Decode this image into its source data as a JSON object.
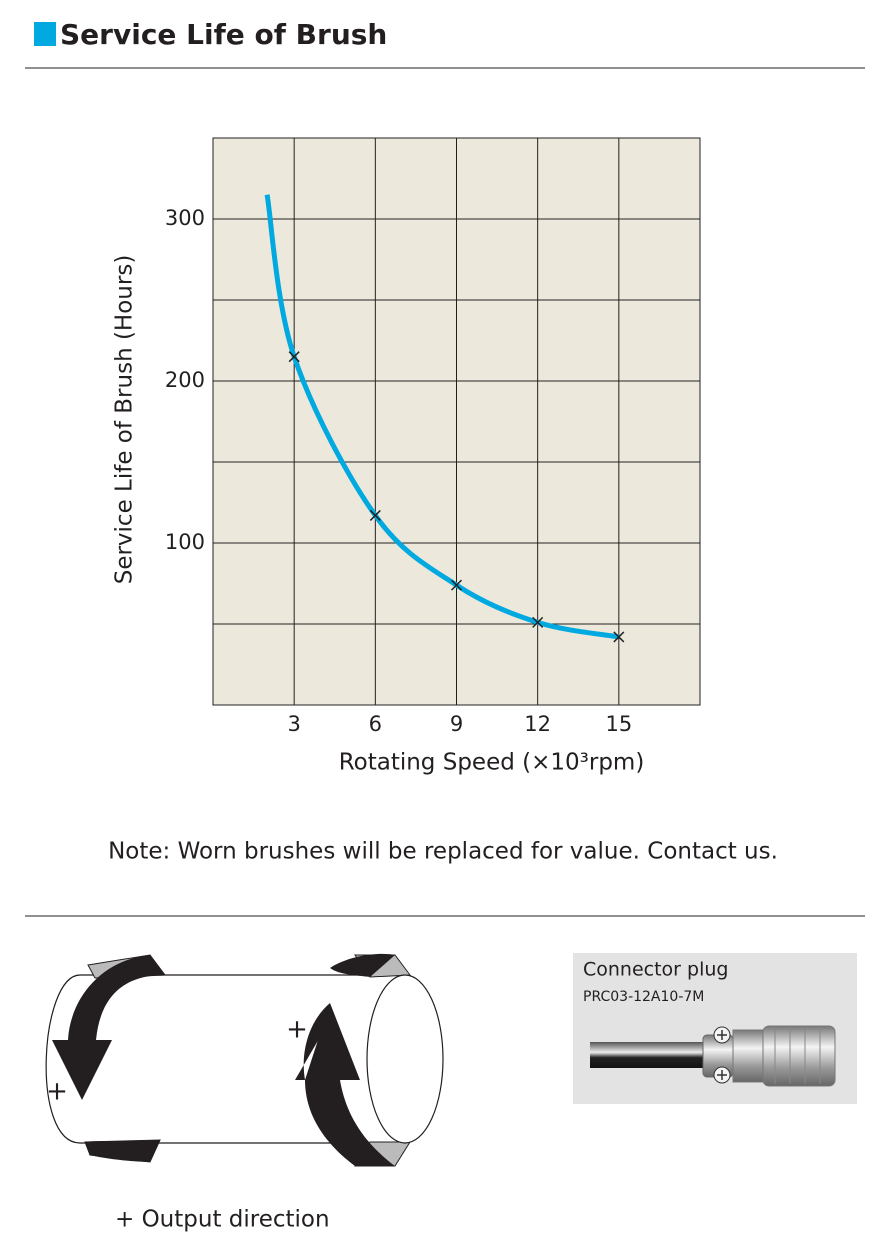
{
  "header": {
    "title": "Service Life of Brush"
  },
  "chart_data": {
    "type": "line",
    "x_label": "Rotating Speed (×10³rpm)",
    "y_label": "Service Life of Brush (Hours)",
    "xlim": [
      0,
      18
    ],
    "xticks": [
      3,
      6,
      9,
      12,
      15
    ],
    "ylim": [
      0,
      350
    ],
    "yticks": [
      100,
      200,
      300
    ],
    "ygrid": [
      50,
      100,
      150,
      200,
      250,
      300
    ],
    "grid": true,
    "background": "#ece9dc",
    "series": [
      {
        "color": "#00a9e0",
        "marker": "none",
        "x": [
          2,
          3,
          6,
          9,
          12,
          15
        ],
        "values": [
          315,
          215,
          117,
          74,
          51,
          42
        ]
      },
      {
        "color": "#222222",
        "marker": "x",
        "x": [
          3,
          6,
          9,
          12,
          15
        ],
        "values": [
          215,
          117,
          74,
          51,
          42
        ]
      }
    ]
  },
  "note": "Note: Worn brushes will be replaced for value. Contact us.",
  "diagram": {
    "plus_labels": [
      "+",
      "+"
    ],
    "caption": "+ Output direction"
  },
  "connector": {
    "title": "Connector plug",
    "model": "PRC03-12A10-7M"
  }
}
